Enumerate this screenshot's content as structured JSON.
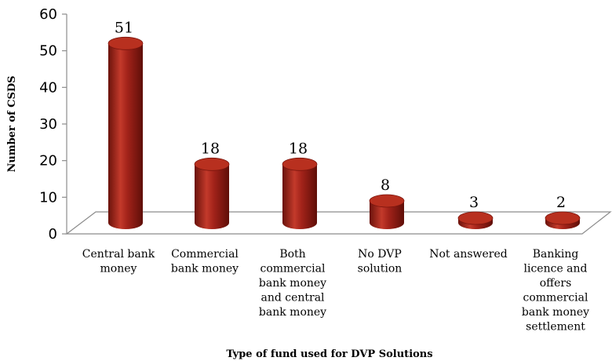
{
  "chart_data": {
    "type": "bar",
    "style": "3d-cylinder",
    "categories": [
      "Central bank money",
      "Commercial bank money",
      "Both commercial bank money and central bank money",
      "No DVP solution",
      "Not answered",
      "Banking licence and offers commercial bank money settlement"
    ],
    "category_label_lines": [
      [
        "Central bank",
        "money"
      ],
      [
        "Commercial",
        "bank money"
      ],
      [
        "Both",
        "commercial",
        "bank money",
        "and central",
        "bank money"
      ],
      [
        "No DVP",
        "solution"
      ],
      [
        "Not answered"
      ],
      [
        "Banking",
        "licence and",
        "offers",
        "commercial",
        "bank money",
        "settlement"
      ]
    ],
    "values": [
      51,
      18,
      18,
      8,
      3,
      2
    ],
    "data_labels": [
      "51",
      "18",
      "18",
      "8",
      "3",
      "2"
    ],
    "xlabel": "Type of fund used for DVP Solutions",
    "ylabel": "Number of CSDS",
    "ylim": [
      0,
      60
    ],
    "yticks": [
      "0",
      "10",
      "20",
      "30",
      "40",
      "50",
      "60"
    ],
    "grid": false,
    "legend": "none",
    "colors": {
      "bar": "#a3231a",
      "bar_dark": "#5e0e08",
      "bar_light": "#d95a48",
      "axis": "#8c8c8c"
    }
  }
}
